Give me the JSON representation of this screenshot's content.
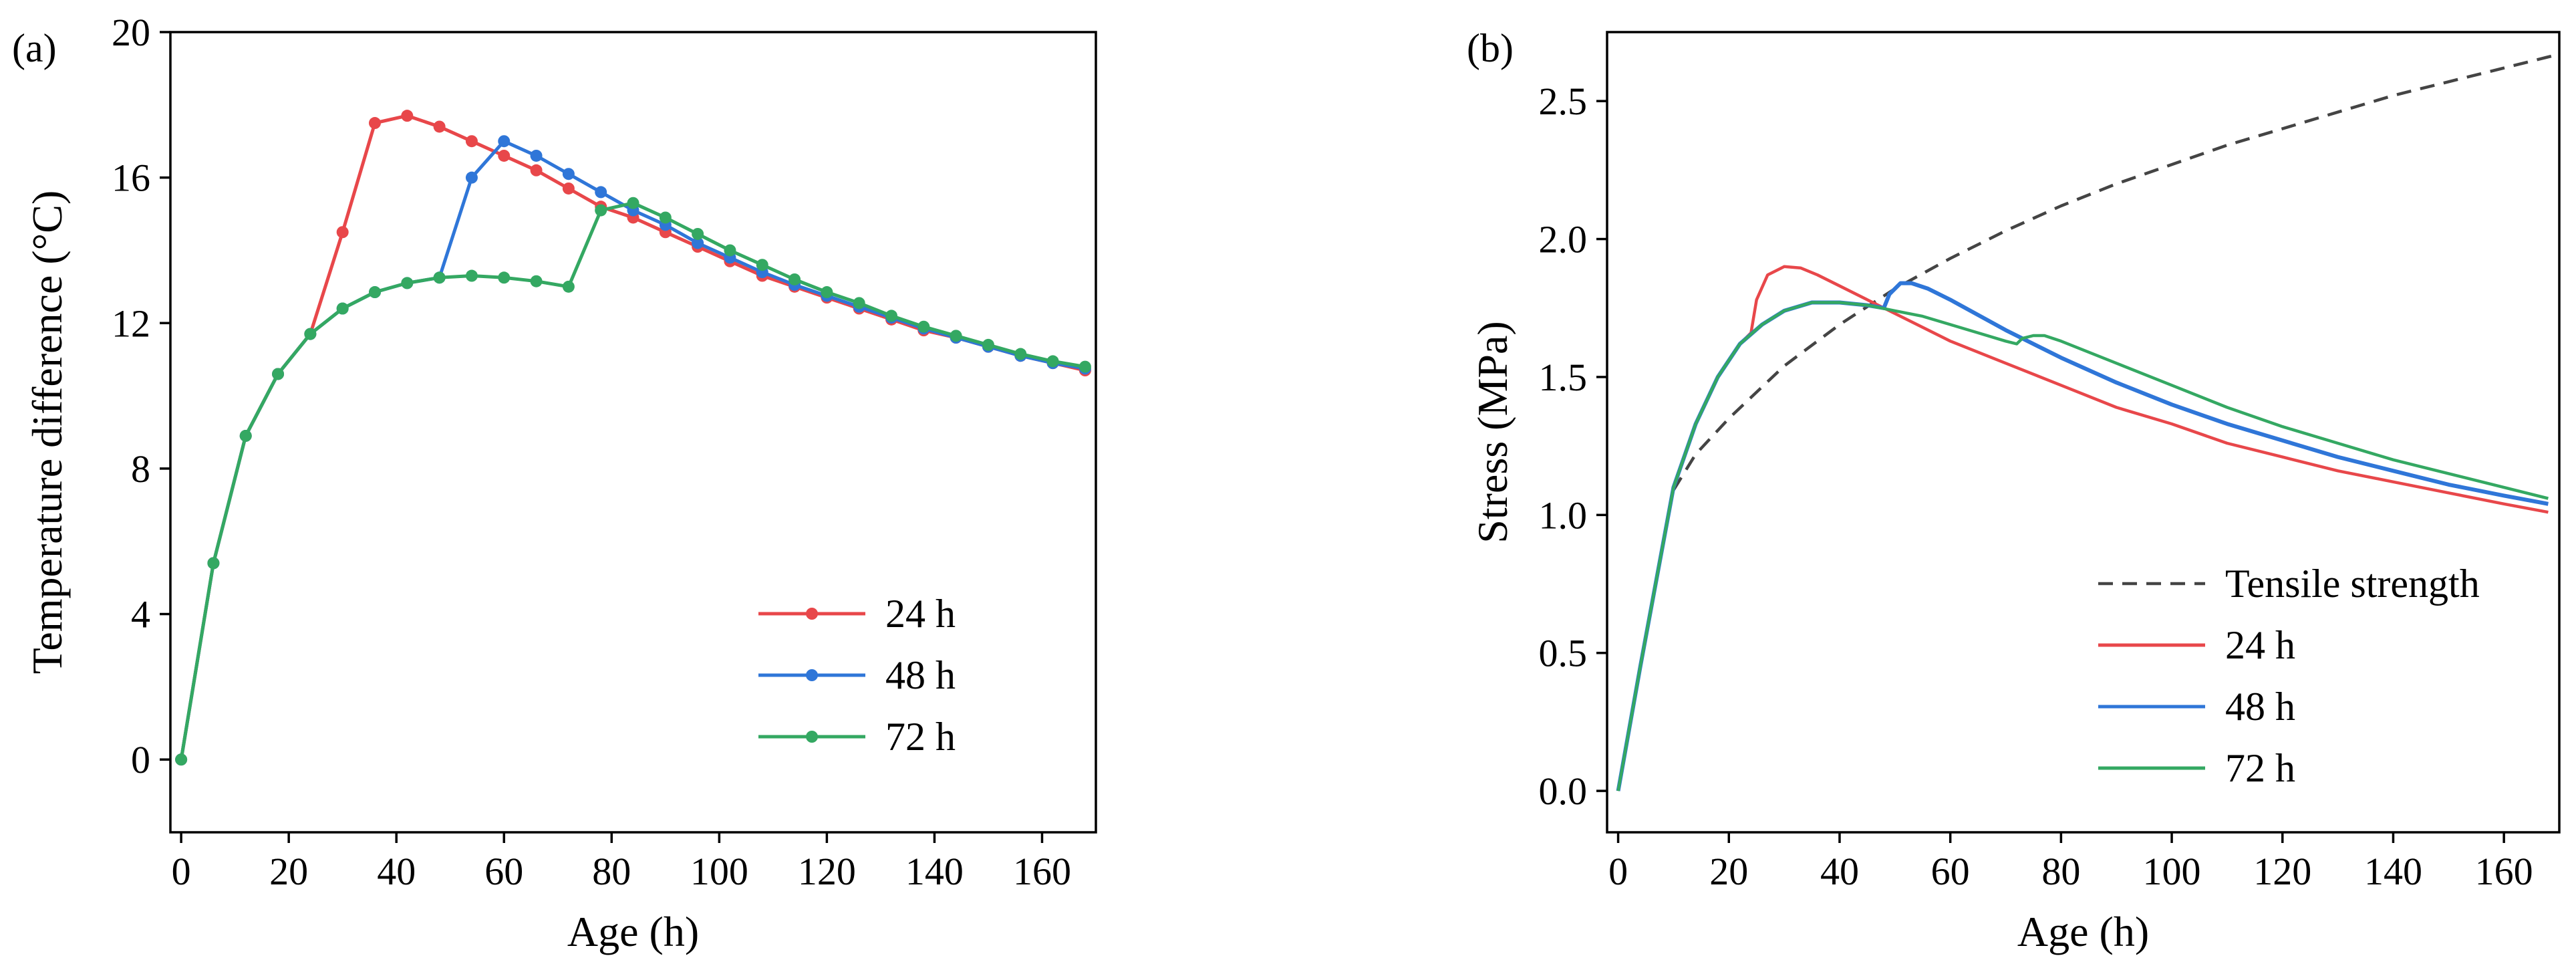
{
  "chart_data": [
    {
      "panel_label": "(a)",
      "type": "line",
      "xlabel": "Age (h)",
      "ylabel": "Temperature difference (°C)",
      "xlim": [
        -2,
        170
      ],
      "ylim": [
        -2,
        20
      ],
      "xticks": [
        0,
        20,
        40,
        60,
        80,
        100,
        120,
        140,
        160
      ],
      "yticks": [
        0,
        4,
        8,
        12,
        16,
        20
      ],
      "legend_position": "bottom-right",
      "markers": true,
      "series": [
        {
          "name": "24 h",
          "color": "#e8474a",
          "x": [
            0,
            6,
            12,
            18,
            24,
            30,
            36,
            42,
            48,
            54,
            60,
            66,
            72,
            78,
            84,
            90,
            96,
            102,
            108,
            114,
            120,
            126,
            132,
            138,
            144,
            150,
            156,
            162,
            168
          ],
          "y": [
            0,
            5.4,
            8.9,
            10.6,
            11.7,
            14.5,
            17.5,
            17.7,
            17.4,
            17.0,
            16.6,
            16.2,
            15.7,
            15.2,
            14.9,
            14.5,
            14.1,
            13.7,
            13.3,
            13.0,
            12.7,
            12.4,
            12.1,
            11.8,
            11.6,
            11.35,
            11.1,
            10.9,
            10.7
          ]
        },
        {
          "name": "48 h",
          "color": "#2f76d8",
          "x": [
            0,
            6,
            12,
            18,
            24,
            30,
            36,
            42,
            48,
            54,
            60,
            66,
            72,
            78,
            84,
            90,
            96,
            102,
            108,
            114,
            120,
            126,
            132,
            138,
            144,
            150,
            156,
            162,
            168
          ],
          "y": [
            0,
            5.4,
            8.9,
            10.6,
            11.7,
            12.4,
            12.85,
            13.1,
            13.25,
            16.0,
            17.0,
            16.6,
            16.1,
            15.6,
            15.1,
            14.7,
            14.2,
            13.8,
            13.4,
            13.05,
            12.75,
            12.45,
            12.15,
            11.85,
            11.6,
            11.35,
            11.1,
            10.9,
            10.75
          ]
        },
        {
          "name": "72 h",
          "color": "#34a862",
          "x": [
            0,
            6,
            12,
            18,
            24,
            30,
            36,
            42,
            48,
            54,
            60,
            66,
            72,
            78,
            84,
            90,
            96,
            102,
            108,
            114,
            120,
            126,
            132,
            138,
            144,
            150,
            156,
            162,
            168
          ],
          "y": [
            0,
            5.4,
            8.9,
            10.6,
            11.7,
            12.4,
            12.85,
            13.1,
            13.25,
            13.3,
            13.25,
            13.15,
            13.0,
            15.1,
            15.3,
            14.9,
            14.45,
            14.0,
            13.6,
            13.2,
            12.85,
            12.55,
            12.2,
            11.9,
            11.65,
            11.4,
            11.15,
            10.95,
            10.8
          ]
        }
      ]
    },
    {
      "panel_label": "(b)",
      "type": "line",
      "xlabel": "Age (h)",
      "ylabel": "Stress (MPa)",
      "xlim": [
        -2,
        170
      ],
      "ylim": [
        -0.15,
        2.75
      ],
      "xticks": [
        0,
        20,
        40,
        60,
        80,
        100,
        120,
        140,
        160
      ],
      "yticks": [
        0.0,
        0.5,
        1.0,
        1.5,
        2.0,
        2.5
      ],
      "ytick_labels": [
        "0.0",
        "0.5",
        "1.0",
        "1.5",
        "2.0",
        "2.5"
      ],
      "legend_position": "bottom-right",
      "markers": false,
      "series": [
        {
          "name": "Tensile strength",
          "color": "#444444",
          "dashed": true,
          "x": [
            10,
            14,
            20,
            30,
            40,
            50,
            60,
            70,
            80,
            90,
            100,
            110,
            120,
            130,
            140,
            150,
            160,
            170
          ],
          "y": [
            1.09,
            1.22,
            1.35,
            1.54,
            1.69,
            1.82,
            1.93,
            2.03,
            2.12,
            2.2,
            2.27,
            2.34,
            2.4,
            2.46,
            2.52,
            2.57,
            2.62,
            2.67
          ]
        },
        {
          "name": "24 h",
          "color": "#e8474a",
          "x": [
            0,
            4,
            10,
            14,
            18,
            22,
            24,
            25,
            27,
            30,
            33,
            36,
            40,
            45,
            50,
            60,
            70,
            80,
            90,
            100,
            110,
            120,
            130,
            140,
            150,
            160,
            168
          ],
          "y": [
            0,
            0.45,
            1.1,
            1.33,
            1.5,
            1.62,
            1.66,
            1.78,
            1.87,
            1.9,
            1.895,
            1.87,
            1.83,
            1.78,
            1.73,
            1.63,
            1.55,
            1.47,
            1.39,
            1.33,
            1.26,
            1.21,
            1.16,
            1.12,
            1.08,
            1.04,
            1.01
          ]
        },
        {
          "name": "48 h",
          "color": "#2f76d8",
          "x": [
            0,
            4,
            10,
            14,
            18,
            22,
            26,
            30,
            35,
            40,
            45,
            48,
            49,
            51,
            53,
            56,
            60,
            70,
            80,
            90,
            100,
            110,
            120,
            130,
            140,
            150,
            160,
            168
          ],
          "y": [
            0,
            0.45,
            1.1,
            1.33,
            1.5,
            1.62,
            1.69,
            1.74,
            1.77,
            1.77,
            1.76,
            1.75,
            1.8,
            1.84,
            1.84,
            1.82,
            1.78,
            1.67,
            1.57,
            1.48,
            1.4,
            1.33,
            1.27,
            1.21,
            1.16,
            1.11,
            1.07,
            1.04
          ]
        },
        {
          "name": "72 h",
          "color": "#34a862",
          "x": [
            0,
            4,
            10,
            14,
            18,
            22,
            26,
            30,
            35,
            40,
            45,
            50,
            55,
            60,
            65,
            70,
            72,
            73,
            75,
            77,
            80,
            90,
            100,
            110,
            120,
            130,
            140,
            150,
            160,
            168
          ],
          "y": [
            0,
            0.45,
            1.1,
            1.33,
            1.5,
            1.62,
            1.69,
            1.74,
            1.77,
            1.77,
            1.76,
            1.74,
            1.72,
            1.69,
            1.66,
            1.63,
            1.62,
            1.64,
            1.65,
            1.65,
            1.63,
            1.55,
            1.47,
            1.39,
            1.32,
            1.26,
            1.2,
            1.15,
            1.1,
            1.06
          ]
        }
      ]
    }
  ]
}
